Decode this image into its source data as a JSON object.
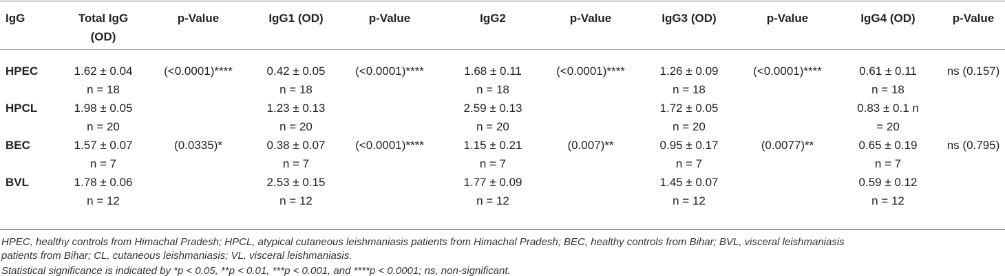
{
  "table": {
    "header": [
      [
        "IgG"
      ],
      [
        "Total IgG",
        "(OD)"
      ],
      [
        "p-Value"
      ],
      [
        "IgG1 (OD)"
      ],
      [
        "p-Value"
      ],
      [
        "IgG2"
      ],
      [
        "p-Value"
      ],
      [
        "IgG3 (OD)"
      ],
      [
        "p-Value"
      ],
      [
        "IgG4 (OD)"
      ],
      [
        "p-Value"
      ]
    ],
    "rows": [
      [
        [
          "HPEC"
        ],
        [
          "1.62 ± 0.04",
          "n = 18"
        ],
        [
          "(<0.0001)****"
        ],
        [
          "0.42 ± 0.05",
          "n = 18"
        ],
        [
          "(<0.0001)****"
        ],
        [
          "1.68 ± 0.11",
          "n = 18"
        ],
        [
          "(<0.0001)****"
        ],
        [
          "1.26 ± 0.09",
          "n = 18"
        ],
        [
          "(<0.0001)****"
        ],
        [
          "0.61 ± 0.11",
          "n = 18"
        ],
        [
          "ns (0.157)"
        ]
      ],
      [
        [
          "HPCL"
        ],
        [
          "1.98 ± 0.05",
          "n = 20"
        ],
        [],
        [
          "1.23 ± 0.13",
          "n = 20"
        ],
        [],
        [
          "2.59 ± 0.13",
          "n = 20"
        ],
        [],
        [
          "1.72 ± 0.05",
          "n = 20"
        ],
        [],
        [
          "0.83 ± 0.1 n",
          "= 20"
        ],
        []
      ],
      [
        [
          "BEC"
        ],
        [
          "1.57 ± 0.07",
          "n = 7"
        ],
        [
          "(0.0335)*"
        ],
        [
          "0.38 ± 0.07",
          "n = 7"
        ],
        [
          "(<0.0001)****"
        ],
        [
          "1.15 ± 0.21",
          "n = 7"
        ],
        [
          "(0.007)**"
        ],
        [
          "0.95 ± 0.17",
          "n = 7"
        ],
        [
          "(0.0077)**"
        ],
        [
          "0.65 ± 0.19",
          "n = 7"
        ],
        [
          "ns (0.795)"
        ]
      ],
      [
        [
          "BVL"
        ],
        [
          "1.78 ± 0.06",
          "n = 12"
        ],
        [],
        [
          "2.53 ± 0.15",
          "n = 12"
        ],
        [],
        [
          "1.77 ± 0.09",
          "n = 12"
        ],
        [],
        [
          "1.45 ± 0.07",
          "n = 12"
        ],
        [],
        [
          "0.59 ± 0.12",
          "n = 12"
        ],
        []
      ]
    ]
  },
  "footnotes": [
    "HPEC, healthy controls from Himachal Pradesh; HPCL, atypical cutaneous leishmaniasis patients from Himachal Pradesh; BEC, healthy controls from Bihar; BVL, visceral leishmaniasis",
    "patients from Bihar; CL, cutaneous leishmaniasis; VL, visceral leishmaniasis.",
    "Statistical significance is indicated by *p < 0.05, **p < 0.01, ***p < 0.001, and ****p < 0.0001; ns, non-significant."
  ]
}
